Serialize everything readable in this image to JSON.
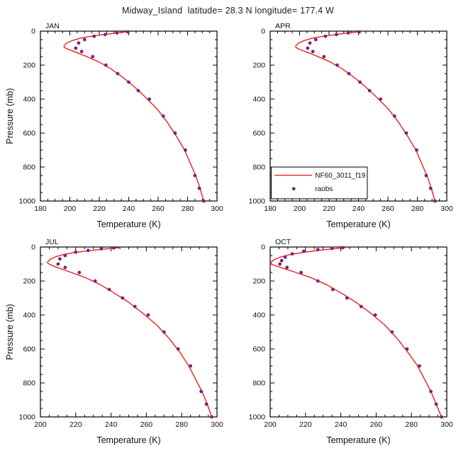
{
  "title": "Midway_Island  latitude= 28.3 N longitude= 177.4 W",
  "colors": {
    "model": "#e5231b",
    "obs": "#7d2181",
    "axis": "#000000",
    "legend_obs_text": "#111111"
  },
  "legend": {
    "model_label": "NF60_3011_f19",
    "obs_label": "raobs"
  },
  "axes": {
    "x_label": "Temperature (K)",
    "y_label": "Pressure (mb)"
  },
  "chart_data": [
    {
      "type": "line+scatter",
      "label": "JAN",
      "xlim": [
        180,
        300
      ],
      "ylim": [
        0,
        1000
      ],
      "x_ticks": [
        180,
        200,
        220,
        240,
        260,
        280,
        300
      ],
      "y_ticks": [
        0,
        200,
        400,
        600,
        800,
        1000
      ],
      "x_minor_step": 5,
      "y_minor_step": 50,
      "show_y_label": true,
      "legend": false,
      "series": [
        {
          "name": "NF60_3011_f19",
          "type": "line",
          "points": [
            [
              291,
              1000
            ],
            [
              288.5,
              925
            ],
            [
              285.5,
              850
            ],
            [
              282,
              780
            ],
            [
              278,
              700
            ],
            [
              272.5,
              620
            ],
            [
              266.5,
              540
            ],
            [
              259.5,
              460
            ],
            [
              251.5,
              390
            ],
            [
              243.5,
              325
            ],
            [
              236,
              272
            ],
            [
              228,
              222
            ],
            [
              219.5,
              180
            ],
            [
              211,
              148
            ],
            [
              203.5,
              122
            ],
            [
              198.5,
              106
            ],
            [
              196.2,
              96
            ],
            [
              196,
              88
            ],
            [
              197.5,
              72
            ],
            [
              201.5,
              56
            ],
            [
              206.5,
              43
            ],
            [
              212.5,
              33
            ],
            [
              219.5,
              24
            ],
            [
              227,
              16
            ],
            [
              234,
              9
            ],
            [
              240,
              3
            ]
          ]
        },
        {
          "name": "raobs",
          "type": "scatter",
          "points": [
            [
              291,
              1000
            ],
            [
              288,
              925
            ],
            [
              285,
              850
            ],
            [
              278.5,
              700
            ],
            [
              271.5,
              600
            ],
            [
              263.5,
              500
            ],
            [
              254,
              400
            ],
            [
              246.5,
              350
            ],
            [
              240,
              300
            ],
            [
              232.5,
              250
            ],
            [
              224.5,
              200
            ],
            [
              215.5,
              150
            ],
            [
              208,
              120
            ],
            [
              204,
              100
            ],
            [
              206,
              70
            ],
            [
              210,
              50
            ],
            [
              216.5,
              30
            ],
            [
              224,
              20
            ],
            [
              232,
              10
            ],
            [
              239.5,
              5
            ]
          ]
        }
      ]
    },
    {
      "type": "line+scatter",
      "label": "APR",
      "xlim": [
        180,
        300
      ],
      "ylim": [
        0,
        1000
      ],
      "x_ticks": [
        180,
        200,
        220,
        240,
        260,
        280,
        300
      ],
      "y_ticks": [
        0,
        200,
        400,
        600,
        800,
        1000
      ],
      "x_minor_step": 5,
      "y_minor_step": 50,
      "show_y_label": false,
      "legend": true,
      "series": [
        {
          "name": "NF60_3011_f19",
          "type": "line",
          "points": [
            [
              292,
              1000
            ],
            [
              289.5,
              925
            ],
            [
              286.5,
              850
            ],
            [
              283,
              780
            ],
            [
              279,
              700
            ],
            [
              273.5,
              620
            ],
            [
              267.5,
              540
            ],
            [
              260.5,
              460
            ],
            [
              252.5,
              390
            ],
            [
              244.5,
              325
            ],
            [
              237,
              272
            ],
            [
              229,
              222
            ],
            [
              220.5,
              180
            ],
            [
              212,
              148
            ],
            [
              204.5,
              122
            ],
            [
              199.5,
              106
            ],
            [
              197.5,
              96
            ],
            [
              197.3,
              88
            ],
            [
              199,
              72
            ],
            [
              203,
              56
            ],
            [
              208,
              43
            ],
            [
              214,
              33
            ],
            [
              221,
              24
            ],
            [
              228.5,
              16
            ],
            [
              235.5,
              9
            ],
            [
              241.5,
              3
            ]
          ]
        },
        {
          "name": "raobs",
          "type": "scatter",
          "points": [
            [
              292,
              1000
            ],
            [
              289,
              925
            ],
            [
              286,
              850
            ],
            [
              279.5,
              700
            ],
            [
              272.5,
              600
            ],
            [
              264.5,
              500
            ],
            [
              255,
              400
            ],
            [
              247.5,
              350
            ],
            [
              241,
              300
            ],
            [
              233.5,
              250
            ],
            [
              225.5,
              200
            ],
            [
              216.5,
              150
            ],
            [
              209,
              120
            ],
            [
              205.5,
              100
            ],
            [
              207,
              70
            ],
            [
              211,
              50
            ],
            [
              217.5,
              30
            ],
            [
              225,
              20
            ],
            [
              233,
              10
            ],
            [
              240.5,
              5
            ]
          ]
        }
      ]
    },
    {
      "type": "line+scatter",
      "label": "JUL",
      "xlim": [
        200,
        300
      ],
      "ylim": [
        0,
        1000
      ],
      "x_ticks": [
        200,
        220,
        240,
        260,
        280,
        300
      ],
      "y_ticks": [
        0,
        200,
        400,
        600,
        800,
        1000
      ],
      "x_minor_step": 5,
      "y_minor_step": 50,
      "show_y_label": true,
      "legend": false,
      "series": [
        {
          "name": "NF60_3011_f19",
          "type": "line",
          "points": [
            [
              297,
              1000
            ],
            [
              294.5,
              925
            ],
            [
              291.5,
              850
            ],
            [
              288,
              780
            ],
            [
              284,
              700
            ],
            [
              279,
              620
            ],
            [
              273,
              540
            ],
            [
              266,
              460
            ],
            [
              258,
              390
            ],
            [
              250,
              325
            ],
            [
              242,
              272
            ],
            [
              234,
              222
            ],
            [
              225.5,
              180
            ],
            [
              217,
              148
            ],
            [
              210,
              122
            ],
            [
              206,
              106
            ],
            [
              204.2,
              96
            ],
            [
              204,
              88
            ],
            [
              205.5,
              72
            ],
            [
              209,
              56
            ],
            [
              213.5,
              43
            ],
            [
              219,
              33
            ],
            [
              225.5,
              24
            ],
            [
              232.5,
              16
            ],
            [
              239.5,
              9
            ],
            [
              245.5,
              3
            ]
          ]
        },
        {
          "name": "raobs",
          "type": "scatter",
          "points": [
            [
              297,
              1000
            ],
            [
              294,
              925
            ],
            [
              291,
              850
            ],
            [
              285,
              700
            ],
            [
              278,
              600
            ],
            [
              270,
              500
            ],
            [
              261,
              400
            ],
            [
              253.5,
              350
            ],
            [
              246.5,
              300
            ],
            [
              239,
              250
            ],
            [
              231,
              200
            ],
            [
              222,
              150
            ],
            [
              214,
              120
            ],
            [
              210,
              100
            ],
            [
              211,
              70
            ],
            [
              214,
              50
            ],
            [
              220,
              30
            ],
            [
              227,
              20
            ],
            [
              234.5,
              10
            ],
            [
              241.5,
              5
            ]
          ]
        }
      ]
    },
    {
      "type": "line+scatter",
      "label": "OCT",
      "xlim": [
        200,
        300
      ],
      "ylim": [
        0,
        1000
      ],
      "x_ticks": [
        200,
        220,
        240,
        260,
        280,
        300
      ],
      "y_ticks": [
        0,
        200,
        400,
        600,
        800,
        1000
      ],
      "x_minor_step": 5,
      "y_minor_step": 50,
      "show_y_label": false,
      "legend": false,
      "series": [
        {
          "name": "NF60_3011_f19",
          "type": "line",
          "points": [
            [
              297,
              1000
            ],
            [
              294,
              925
            ],
            [
              291,
              850
            ],
            [
              287.5,
              780
            ],
            [
              283.5,
              700
            ],
            [
              278,
              620
            ],
            [
              272,
              540
            ],
            [
              265,
              460
            ],
            [
              257,
              390
            ],
            [
              248.5,
              325
            ],
            [
              240.5,
              272
            ],
            [
              232,
              222
            ],
            [
              223,
              180
            ],
            [
              214,
              148
            ],
            [
              206.5,
              122
            ],
            [
              202.5,
              108
            ],
            [
              200.5,
              100
            ],
            [
              200.3,
              92
            ],
            [
              202,
              76
            ],
            [
              205.5,
              60
            ],
            [
              210.5,
              46
            ],
            [
              216.5,
              35
            ],
            [
              223.5,
              25
            ],
            [
              230.5,
              16
            ],
            [
              237.5,
              9
            ],
            [
              243,
              3
            ]
          ]
        },
        {
          "name": "raobs",
          "type": "scatter",
          "points": [
            [
              297,
              1000
            ],
            [
              294,
              925
            ],
            [
              291,
              850
            ],
            [
              284.5,
              700
            ],
            [
              277.5,
              600
            ],
            [
              269,
              500
            ],
            [
              259.5,
              400
            ],
            [
              251.5,
              350
            ],
            [
              243.5,
              300
            ],
            [
              235.5,
              250
            ],
            [
              227,
              200
            ],
            [
              217.5,
              150
            ],
            [
              209.5,
              120
            ],
            [
              205.5,
              100
            ],
            [
              206.5,
              80
            ],
            [
              208.5,
              60
            ],
            [
              212.5,
              40
            ],
            [
              219,
              25
            ],
            [
              227,
              15
            ],
            [
              235,
              8
            ],
            [
              241,
              4
            ]
          ]
        }
      ]
    }
  ]
}
